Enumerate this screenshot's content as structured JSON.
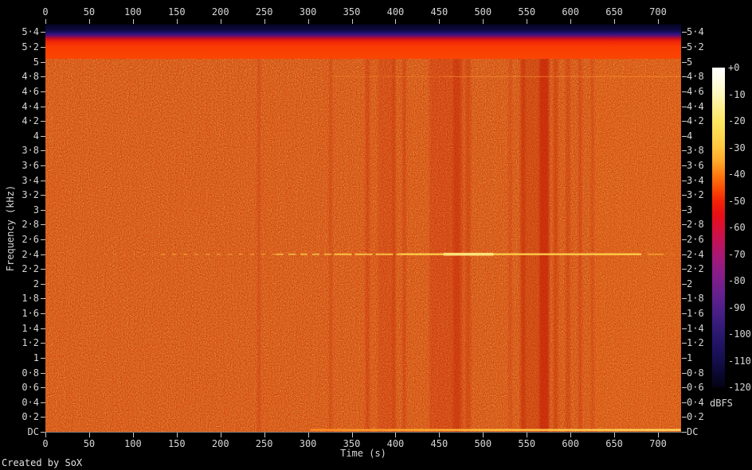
{
  "credit": "Created by SoX",
  "axes": {
    "x": {
      "label": "Time (s)",
      "ticks": [
        {
          "label": "0",
          "value": 0
        },
        {
          "label": "50",
          "value": 50
        },
        {
          "label": "100",
          "value": 100
        },
        {
          "label": "150",
          "value": 150
        },
        {
          "label": "200",
          "value": 200
        },
        {
          "label": "250",
          "value": 250
        },
        {
          "label": "300",
          "value": 300
        },
        {
          "label": "350",
          "value": 350
        },
        {
          "label": "400",
          "value": 400
        },
        {
          "label": "450",
          "value": 450
        },
        {
          "label": "500",
          "value": 500
        },
        {
          "label": "550",
          "value": 550
        },
        {
          "label": "600",
          "value": 600
        },
        {
          "label": "650",
          "value": 650
        },
        {
          "label": "700",
          "value": 700
        }
      ]
    },
    "y": {
      "label": "Frequency (kHz)",
      "ticks": [
        {
          "label": "5·4",
          "value": 5.4
        },
        {
          "label": "5·2",
          "value": 5.2
        },
        {
          "label": "5",
          "value": 5
        },
        {
          "label": "4·8",
          "value": 4.8
        },
        {
          "label": "4·6",
          "value": 4.6
        },
        {
          "label": "4·4",
          "value": 4.4
        },
        {
          "label": "4·2",
          "value": 4.2
        },
        {
          "label": "4",
          "value": 4
        },
        {
          "label": "3·8",
          "value": 3.8
        },
        {
          "label": "3·6",
          "value": 3.6
        },
        {
          "label": "3·4",
          "value": 3.4
        },
        {
          "label": "3·2",
          "value": 3.2
        },
        {
          "label": "3",
          "value": 3
        },
        {
          "label": "2·8",
          "value": 2.8
        },
        {
          "label": "2·6",
          "value": 2.6
        },
        {
          "label": "2·4",
          "value": 2.4
        },
        {
          "label": "2·2",
          "value": 2.2
        },
        {
          "label": "2",
          "value": 2
        },
        {
          "label": "1·8",
          "value": 1.8
        },
        {
          "label": "1·6",
          "value": 1.6
        },
        {
          "label": "1·4",
          "value": 1.4
        },
        {
          "label": "1·2",
          "value": 1.2
        },
        {
          "label": "1",
          "value": 1
        },
        {
          "label": "0·8",
          "value": 0.8
        },
        {
          "label": "0·6",
          "value": 0.6
        },
        {
          "label": "0·4",
          "value": 0.4
        },
        {
          "label": "0·2",
          "value": 0.2
        },
        {
          "label": "DC",
          "value": 0
        }
      ]
    }
  },
  "colorbar": {
    "unit": "dBFS",
    "ticks": [
      "+0",
      "-10",
      "-20",
      "-30",
      "-40",
      "-50",
      "-60",
      "-70",
      "-80",
      "-90",
      "-100",
      "-110",
      "-120"
    ]
  },
  "chart_data": {
    "type": "heatmap",
    "subtype": "audio-spectrogram",
    "title": "",
    "xlabel": "Time (s)",
    "ylabel": "Frequency (kHz)",
    "x_ticks": [
      0,
      50,
      100,
      150,
      200,
      250,
      300,
      350,
      400,
      450,
      500,
      550,
      600,
      650,
      700
    ],
    "x_range_s": [
      0,
      726
    ],
    "y_ticks_khz": [
      5.4,
      5.2,
      5.0,
      4.8,
      4.6,
      4.4,
      4.2,
      4.0,
      3.8,
      3.6,
      3.4,
      3.2,
      3.0,
      2.8,
      2.6,
      2.4,
      2.2,
      2.0,
      1.8,
      1.6,
      1.4,
      1.2,
      1.0,
      0.8,
      0.6,
      0.4,
      0.2,
      0
    ],
    "y_range_khz": [
      0,
      5.51
    ],
    "colorbar": {
      "unit": "dBFS",
      "min": -120,
      "max": 0,
      "tick_step": 10
    },
    "features": {
      "background_level_dbfs": -45,
      "nyquist_rolloff_khz": [
        5.3,
        5.51
      ],
      "tone_2k4": "intermittent 2.4 kHz tone from ~120 s, continuous and strong ~370-640 s, brightest ~455-512 s",
      "tone_4k8": "faint 4.8 kHz line from ~330 s to end",
      "dc_line": "bright DC line from ~300 s to end, yellow after ~510 s",
      "quiet_columns_s": [
        244,
        326,
        368,
        390,
        398,
        410,
        458,
        470,
        483,
        531,
        546,
        559,
        570,
        583,
        597,
        611,
        625
      ]
    },
    "render": {
      "body_color": "#fa4503",
      "streak_color": "#c01600",
      "band_stops": [
        "#03031a",
        "#0d0a44",
        "#1d1068",
        "#3d1180",
        "#7a0f62",
        "#c50d20",
        "#ef2405",
        "#f93c03",
        "#fa4503"
      ],
      "band_offsets": [
        0,
        18,
        25,
        31,
        36,
        42,
        50,
        65,
        100
      ],
      "streaks": [
        [
          244,
          3,
          0.2
        ],
        [
          326,
          3,
          0.28
        ],
        [
          368,
          5,
          0.22
        ],
        [
          390,
          22,
          0.14
        ],
        [
          398,
          3,
          0.3
        ],
        [
          410,
          4,
          0.22
        ],
        [
          458,
          42,
          0.18
        ],
        [
          470,
          9,
          0.35
        ],
        [
          483,
          6,
          0.3
        ],
        [
          531,
          3,
          0.25
        ],
        [
          546,
          5,
          0.28
        ],
        [
          559,
          36,
          0.28
        ],
        [
          570,
          12,
          0.45
        ],
        [
          583,
          5,
          0.35
        ],
        [
          597,
          5,
          0.3
        ],
        [
          611,
          4,
          0.22
        ],
        [
          625,
          3,
          0.18
        ]
      ],
      "tone24": {
        "freq_khz": 2.4,
        "color": "#ffd14a",
        "core_color": "#ffe87e",
        "faint_color": "#ffb636",
        "glow_color": "#ffa828",
        "segments": [
          {
            "t": [
              68,
              132
            ],
            "w": 1.2,
            "o": 0.45,
            "dash": "2 10"
          },
          {
            "t": [
              132,
              264
            ],
            "w": 1.5,
            "o": 0.6,
            "dash": "5 9"
          },
          {
            "t": [
              264,
              330
            ],
            "w": 2,
            "o": 0.7,
            "dash": "9 6"
          },
          {
            "t": [
              330,
              406
            ],
            "w": 2,
            "o": 0.85,
            "dash": "22 4"
          },
          {
            "t": [
              406,
              681
            ],
            "w": 2.4,
            "o": 0.95
          },
          {
            "t": [
              688,
              706
            ],
            "w": 2,
            "o": 0.6
          },
          {
            "t": [
              706,
              722
            ],
            "w": 1.2,
            "o": 0.3,
            "dash": "4 6"
          }
        ],
        "core": {
          "t": [
            455,
            512
          ],
          "w": 3.6,
          "o": 0.9
        },
        "glow": {
          "t": [
            380,
            690
          ],
          "w": 7,
          "o": 0.3
        }
      },
      "tone48": {
        "freq_khz": 4.8,
        "color": "#ff9634",
        "segments": [
          {
            "t": [
              328,
              455
            ],
            "w": 1.2,
            "o": 0.3
          },
          {
            "t": [
              455,
              726
            ],
            "w": 1.2,
            "o": 0.55
          }
        ]
      },
      "dc": {
        "t": [
          303,
          726
        ],
        "h": 2.4,
        "stops": [
          "#ff8c1e",
          "#ffc83e",
          "#ffdf63"
        ]
      },
      "right_wash": {
        "t": [
          628,
          726
        ],
        "color": "#ff7c12",
        "o": 0.08
      }
    }
  }
}
